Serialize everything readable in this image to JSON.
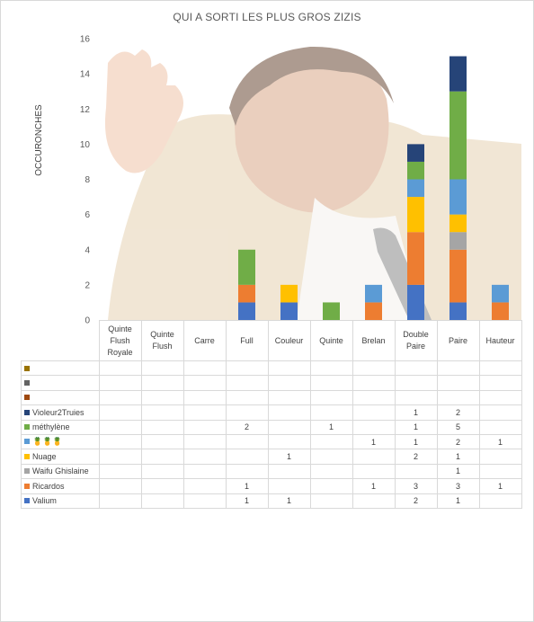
{
  "chart_data": {
    "type": "bar",
    "stacked": true,
    "title": "QUI A SORTI LES PLUS GROS ZIZIS",
    "ylabel": "OCCURONCHES",
    "xlabel": "",
    "ylim": [
      0,
      16
    ],
    "yticks": [
      0,
      2,
      4,
      6,
      8,
      10,
      12,
      14,
      16
    ],
    "grid": false,
    "legend": "data-table",
    "categories": [
      "Quinte Flush Royale",
      "Quinte Flush",
      "Carre",
      "Full",
      "Couleur",
      "Quinte",
      "Brelan",
      "Double Paire",
      "Paire",
      "Hauteur"
    ],
    "series": [
      {
        "name": "Valium",
        "color": "#4472c4",
        "values": [
          null,
          null,
          null,
          1,
          1,
          null,
          null,
          2,
          1,
          null
        ]
      },
      {
        "name": "Ricardos",
        "color": "#ed7d31",
        "values": [
          null,
          null,
          null,
          1,
          null,
          null,
          1,
          3,
          3,
          1
        ]
      },
      {
        "name": "Waifu Ghislaine",
        "color": "#a5a5a5",
        "values": [
          null,
          null,
          null,
          null,
          null,
          null,
          null,
          null,
          1,
          null
        ]
      },
      {
        "name": "Nuage",
        "color": "#ffc000",
        "values": [
          null,
          null,
          null,
          null,
          1,
          null,
          null,
          2,
          1,
          null
        ]
      },
      {
        "name": "🍍🍍🍍",
        "color": "#5b9bd5",
        "values": [
          null,
          null,
          null,
          null,
          null,
          null,
          1,
          1,
          2,
          1
        ]
      },
      {
        "name": "méthylène",
        "color": "#70ad47",
        "values": [
          null,
          null,
          null,
          2,
          null,
          1,
          null,
          1,
          5,
          null
        ]
      },
      {
        "name": "Violeur2Truies",
        "color": "#264478",
        "values": [
          null,
          null,
          null,
          null,
          null,
          null,
          null,
          1,
          2,
          null
        ]
      },
      {
        "name": "",
        "color": "#9e480e",
        "values": [
          null,
          null,
          null,
          null,
          null,
          null,
          null,
          null,
          null,
          null
        ]
      },
      {
        "name": "",
        "color": "#636363",
        "values": [
          null,
          null,
          null,
          null,
          null,
          null,
          null,
          null,
          null,
          null
        ]
      },
      {
        "name": "",
        "color": "#997300",
        "values": [
          null,
          null,
          null,
          null,
          null,
          null,
          null,
          null,
          null,
          null
        ]
      }
    ]
  }
}
